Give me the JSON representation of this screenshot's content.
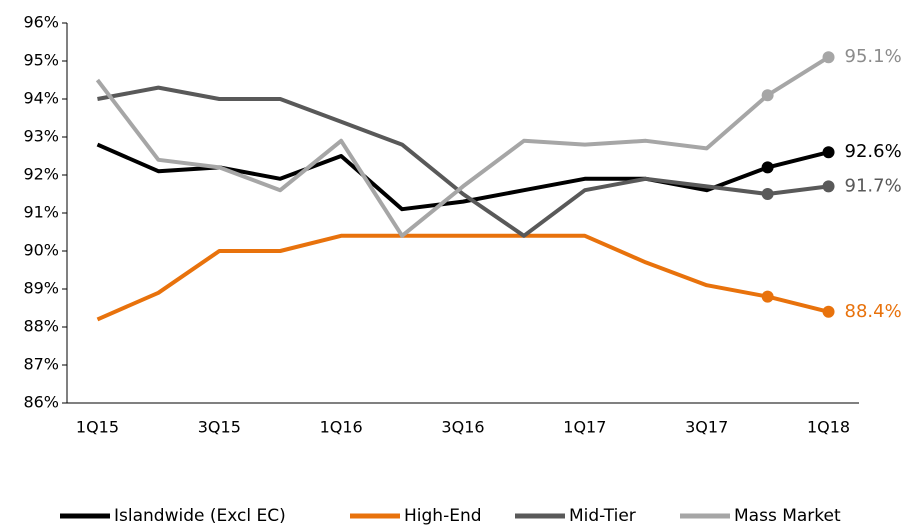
{
  "chart_data": {
    "type": "line",
    "categories": [
      "1Q15",
      null,
      "3Q15",
      null,
      "1Q16",
      null,
      "3Q16",
      null,
      "1Q17",
      null,
      "3Q17",
      null,
      "1Q18"
    ],
    "series": [
      {
        "name": "Islandwide (Excl EC)",
        "color": "#000000",
        "values": [
          92.8,
          92.1,
          92.2,
          91.9,
          92.5,
          91.1,
          91.3,
          91.6,
          91.9,
          91.9,
          91.6,
          92.2,
          92.6
        ],
        "value_labels": [
          null,
          null,
          null,
          null,
          null,
          null,
          null,
          null,
          null,
          null,
          null,
          null,
          "92.6%"
        ]
      },
      {
        "name": "High-End",
        "color": "#e8720c",
        "values": [
          88.2,
          88.9,
          90.0,
          90.0,
          90.4,
          90.4,
          90.4,
          90.4,
          90.4,
          89.7,
          89.1,
          88.8,
          88.4
        ],
        "value_labels": [
          null,
          null,
          null,
          null,
          null,
          null,
          null,
          null,
          null,
          null,
          null,
          null,
          "88.4%"
        ]
      },
      {
        "name": "Mid-Tier",
        "color": "#595959",
        "values": [
          94.0,
          94.3,
          94.0,
          94.0,
          93.4,
          92.8,
          91.5,
          90.4,
          91.6,
          91.9,
          91.7,
          91.5,
          91.7
        ],
        "value_labels": [
          null,
          null,
          null,
          null,
          null,
          null,
          null,
          null,
          null,
          null,
          null,
          null,
          "91.7%"
        ]
      },
      {
        "name": "Mass Market",
        "color": "#a6a6a6",
        "values": [
          94.5,
          92.4,
          92.2,
          91.6,
          92.9,
          90.4,
          91.7,
          92.9,
          92.8,
          92.9,
          92.7,
          94.1,
          95.1
        ],
        "value_labels": [
          null,
          null,
          null,
          null,
          null,
          null,
          null,
          null,
          null,
          null,
          null,
          null,
          "95.1%"
        ]
      }
    ],
    "ylim": [
      86,
      96
    ],
    "yticks": [
      {
        "value": 86,
        "label": "86%"
      },
      {
        "value": 87,
        "label": "87%"
      },
      {
        "value": 88,
        "label": "88%"
      },
      {
        "value": 89,
        "label": "89%"
      },
      {
        "value": 90,
        "label": "90%"
      },
      {
        "value": 91,
        "label": "91%"
      },
      {
        "value": 92,
        "label": "92%"
      },
      {
        "value": 93,
        "label": "93%"
      },
      {
        "value": 94,
        "label": "94%"
      },
      {
        "value": 95,
        "label": "95%"
      },
      {
        "value": 96,
        "label": "96%"
      }
    ],
    "legend": "bottom"
  }
}
